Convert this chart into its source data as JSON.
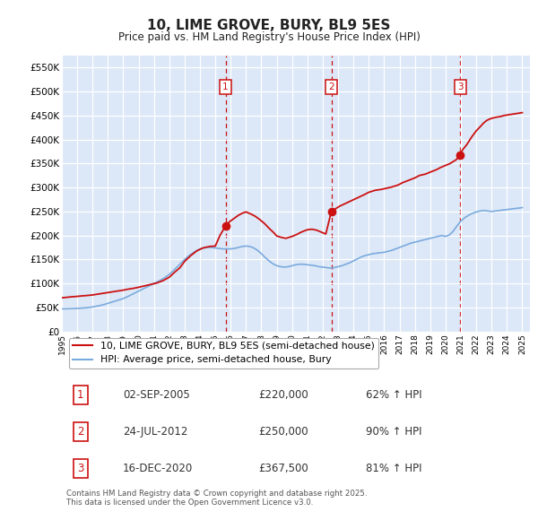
{
  "title": "10, LIME GROVE, BURY, BL9 5ES",
  "subtitle": "Price paid vs. HM Land Registry's House Price Index (HPI)",
  "background_color": "#ffffff",
  "plot_bg_color": "#dce8f8",
  "ylim": [
    0,
    575000
  ],
  "yticks": [
    0,
    50000,
    100000,
    150000,
    200000,
    250000,
    300000,
    350000,
    400000,
    450000,
    500000,
    550000
  ],
  "ytick_labels": [
    "£0",
    "£50K",
    "£100K",
    "£150K",
    "£200K",
    "£250K",
    "£300K",
    "£350K",
    "£400K",
    "£450K",
    "£500K",
    "£550K"
  ],
  "xlim_start": 1995.0,
  "xlim_end": 2025.5,
  "sale_dates": [
    2005.67,
    2012.56,
    2020.96
  ],
  "sale_prices": [
    220000,
    250000,
    367500
  ],
  "sale_labels": [
    "1",
    "2",
    "3"
  ],
  "hpi_line_color": "#7aaadd",
  "property_line_color": "#cc1111",
  "sale_marker_color": "#cc1111",
  "dashed_line_color": "#cc1111",
  "legend_label_property": "10, LIME GROVE, BURY, BL9 5ES (semi-detached house)",
  "legend_label_hpi": "HPI: Average price, semi-detached house, Bury",
  "table_entries": [
    {
      "num": "1",
      "date": "02-SEP-2005",
      "price": "£220,000",
      "change": "62% ↑ HPI"
    },
    {
      "num": "2",
      "date": "24-JUL-2012",
      "price": "£250,000",
      "change": "90% ↑ HPI"
    },
    {
      "num": "3",
      "date": "16-DEC-2020",
      "price": "£367,500",
      "change": "81% ↑ HPI"
    }
  ],
  "footer": "Contains HM Land Registry data © Crown copyright and database right 2025.\nThis data is licensed under the Open Government Licence v3.0.",
  "hpi_data_x": [
    1995.0,
    1995.25,
    1995.5,
    1995.75,
    1996.0,
    1996.25,
    1996.5,
    1996.75,
    1997.0,
    1997.25,
    1997.5,
    1997.75,
    1998.0,
    1998.25,
    1998.5,
    1998.75,
    1999.0,
    1999.25,
    1999.5,
    1999.75,
    2000.0,
    2000.25,
    2000.5,
    2000.75,
    2001.0,
    2001.25,
    2001.5,
    2001.75,
    2002.0,
    2002.25,
    2002.5,
    2002.75,
    2003.0,
    2003.25,
    2003.5,
    2003.75,
    2004.0,
    2004.25,
    2004.5,
    2004.75,
    2005.0,
    2005.25,
    2005.5,
    2005.75,
    2006.0,
    2006.25,
    2006.5,
    2006.75,
    2007.0,
    2007.25,
    2007.5,
    2007.75,
    2008.0,
    2008.25,
    2008.5,
    2008.75,
    2009.0,
    2009.25,
    2009.5,
    2009.75,
    2010.0,
    2010.25,
    2010.5,
    2010.75,
    2011.0,
    2011.25,
    2011.5,
    2011.75,
    2012.0,
    2012.25,
    2012.5,
    2012.75,
    2013.0,
    2013.25,
    2013.5,
    2013.75,
    2014.0,
    2014.25,
    2014.5,
    2014.75,
    2015.0,
    2015.25,
    2015.5,
    2015.75,
    2016.0,
    2016.25,
    2016.5,
    2016.75,
    2017.0,
    2017.25,
    2017.5,
    2017.75,
    2018.0,
    2018.25,
    2018.5,
    2018.75,
    2019.0,
    2019.25,
    2019.5,
    2019.75,
    2020.0,
    2020.25,
    2020.5,
    2020.75,
    2021.0,
    2021.25,
    2021.5,
    2021.75,
    2022.0,
    2022.25,
    2022.5,
    2022.75,
    2023.0,
    2023.25,
    2023.5,
    2023.75,
    2024.0,
    2024.25,
    2024.5,
    2024.75,
    2025.0
  ],
  "hpi_data_y": [
    47000,
    47200,
    47400,
    47600,
    48000,
    48500,
    49000,
    49800,
    51000,
    52500,
    54000,
    56000,
    58500,
    61000,
    63500,
    66000,
    68500,
    72000,
    76000,
    80000,
    84000,
    88000,
    92000,
    96000,
    100000,
    104000,
    108000,
    113000,
    119000,
    126000,
    134000,
    142000,
    150000,
    157000,
    163000,
    168000,
    172000,
    174000,
    175000,
    175000,
    174000,
    173000,
    172000,
    172000,
    172000,
    173000,
    175000,
    177000,
    178000,
    177000,
    174000,
    169000,
    162000,
    154000,
    147000,
    141000,
    137000,
    135000,
    134000,
    135000,
    137000,
    139000,
    140000,
    140000,
    139000,
    138000,
    137000,
    135000,
    134000,
    133000,
    132000,
    133000,
    135000,
    137000,
    140000,
    143000,
    147000,
    151000,
    155000,
    158000,
    160000,
    162000,
    163000,
    164000,
    165000,
    167000,
    169000,
    172000,
    175000,
    178000,
    181000,
    184000,
    186000,
    188000,
    190000,
    192000,
    194000,
    196000,
    198000,
    200000,
    198000,
    201000,
    209000,
    220000,
    230000,
    237000,
    242000,
    246000,
    249000,
    251000,
    252000,
    251000,
    250000,
    251000,
    252000,
    253000,
    254000,
    255000,
    256000,
    257000,
    258000
  ],
  "property_data_x": [
    1995.0,
    1995.3,
    1995.6,
    1996.0,
    1996.3,
    1996.7,
    1997.0,
    1997.4,
    1997.8,
    1998.2,
    1998.6,
    1999.0,
    1999.3,
    1999.7,
    2000.0,
    2000.4,
    2000.8,
    2001.2,
    2001.6,
    2002.0,
    2002.3,
    2002.7,
    2003.0,
    2003.4,
    2003.8,
    2004.2,
    2004.6,
    2005.0,
    2005.3,
    2005.67,
    2005.9,
    2006.2,
    2006.5,
    2006.8,
    2007.0,
    2007.3,
    2007.6,
    2007.9,
    2008.2,
    2008.5,
    2008.8,
    2009.0,
    2009.3,
    2009.6,
    2010.0,
    2010.3,
    2010.6,
    2011.0,
    2011.3,
    2011.6,
    2011.9,
    2012.2,
    2012.56,
    2012.8,
    2013.1,
    2013.5,
    2013.9,
    2014.3,
    2014.7,
    2015.0,
    2015.4,
    2015.8,
    2016.1,
    2016.5,
    2016.9,
    2017.2,
    2017.6,
    2018.0,
    2018.3,
    2018.7,
    2019.0,
    2019.4,
    2019.7,
    2020.0,
    2020.3,
    2020.7,
    2020.96,
    2021.1,
    2021.4,
    2021.7,
    2022.0,
    2022.3,
    2022.5,
    2022.7,
    2022.9,
    2023.1,
    2023.4,
    2023.6,
    2023.8,
    2024.0,
    2024.2,
    2024.4,
    2024.6,
    2024.8,
    2025.0
  ],
  "property_data_y": [
    70000,
    71000,
    72000,
    73000,
    74000,
    75000,
    76000,
    78000,
    80000,
    82000,
    84000,
    86000,
    88000,
    90000,
    92000,
    95000,
    98000,
    101000,
    106000,
    113000,
    122000,
    133000,
    146000,
    158000,
    168000,
    174000,
    177000,
    178000,
    200000,
    220000,
    228000,
    235000,
    242000,
    247000,
    249000,
    245000,
    240000,
    233000,
    225000,
    215000,
    206000,
    199000,
    196000,
    194000,
    198000,
    202000,
    207000,
    212000,
    213000,
    211000,
    207000,
    203000,
    250000,
    255000,
    261000,
    267000,
    273000,
    279000,
    285000,
    290000,
    294000,
    296000,
    298000,
    301000,
    305000,
    310000,
    315000,
    320000,
    325000,
    328000,
    332000,
    337000,
    342000,
    346000,
    350000,
    358000,
    367500,
    378000,
    390000,
    405000,
    418000,
    428000,
    435000,
    440000,
    443000,
    445000,
    447000,
    448000,
    450000,
    451000,
    452000,
    453000,
    454000,
    455000,
    456000
  ]
}
